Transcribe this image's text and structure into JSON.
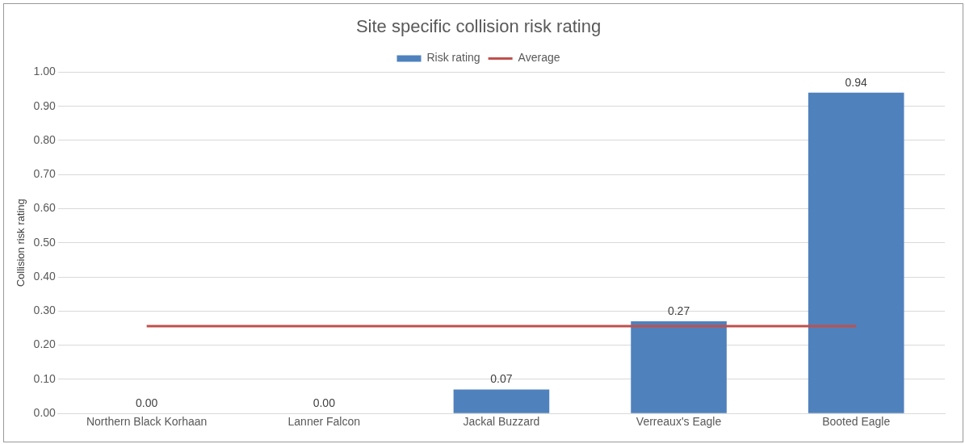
{
  "chart_data": {
    "type": "bar",
    "title": "Site specific collision risk rating",
    "ylabel": "Collision risk rating",
    "categories": [
      "Northern Black Korhaan",
      "Lanner Falcon",
      "Jackal Buzzard",
      "Verreaux's Eagle",
      "Booted Eagle"
    ],
    "series": [
      {
        "name": "Risk rating",
        "color": "#4f81bd",
        "values": [
          0,
          0,
          0.07,
          0.27,
          0.94
        ],
        "value_labels": [
          "0.00",
          "0.00",
          "0.07",
          "0.27",
          "0.94"
        ]
      },
      {
        "name": "Average",
        "type": "line",
        "color": "#c0504d",
        "values": [
          0.256,
          0.256,
          0.256,
          0.256,
          0.256
        ],
        "marker": "none"
      }
    ],
    "ylim": [
      0,
      1
    ],
    "yticks": [
      {
        "value": 0,
        "label": "0.00"
      },
      {
        "value": 0.1,
        "label": "0.10"
      },
      {
        "value": 0.2,
        "label": "0.20"
      },
      {
        "value": 0.3,
        "label": "0.30"
      },
      {
        "value": 0.4,
        "label": "0.40"
      },
      {
        "value": 0.5,
        "label": "0.50"
      },
      {
        "value": 0.6,
        "label": "0.60"
      },
      {
        "value": 0.7,
        "label": "0.70"
      },
      {
        "value": 0.8,
        "label": "0.80"
      },
      {
        "value": 0.9,
        "label": "0.90"
      },
      {
        "value": 1,
        "label": "1.00"
      }
    ],
    "grid": "y",
    "legend": "top"
  }
}
